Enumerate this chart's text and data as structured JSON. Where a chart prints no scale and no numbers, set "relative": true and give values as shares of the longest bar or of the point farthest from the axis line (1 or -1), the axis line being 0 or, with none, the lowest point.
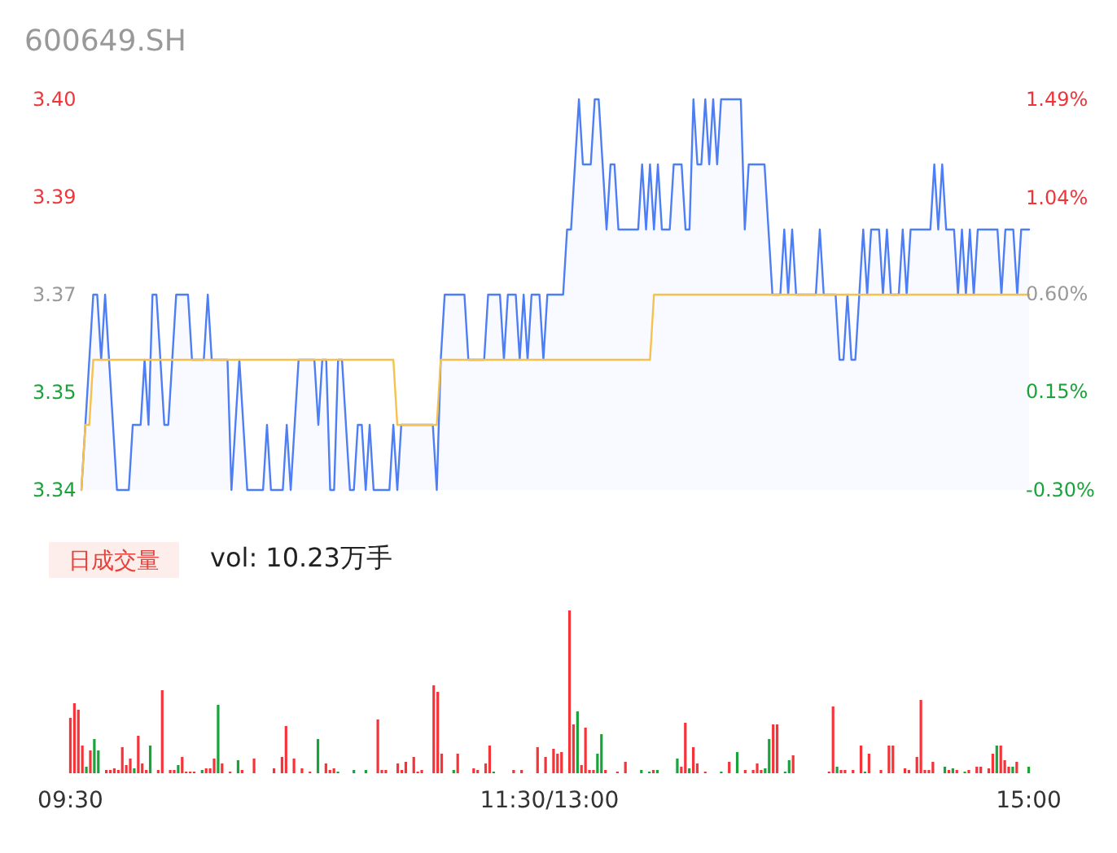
{
  "chart_data": [
    {
      "type": "line",
      "subtitle": "600649.SH",
      "ylim": [
        3.34,
        3.4
      ],
      "yticks": [
        3.34,
        {
          "value": 3.355,
          "label": "3.35"
        },
        3.37,
        {
          "value": 3.385,
          "label": "3.39"
        },
        {
          "value": 3.4,
          "label": "3.40"
        }
      ],
      "y2lim": [
        -0.3,
        1.49
      ],
      "y2ticks": [
        {
          "value": -0.3,
          "label": "-0.30%"
        },
        {
          "value": 0.15,
          "label": "0.15%"
        },
        {
          "value": 0.6,
          "label": "0.60%"
        },
        {
          "value": 1.04,
          "label": "1.04%"
        },
        {
          "value": 1.49,
          "label": "1.49%"
        }
      ],
      "tick_labels": "y",
      "categories": [
        null,
        null,
        null,
        null,
        null,
        null,
        null,
        null,
        null,
        null,
        null,
        null,
        null,
        null,
        null,
        null,
        null,
        null,
        null,
        null,
        null,
        null,
        null,
        null,
        null,
        null,
        null,
        null,
        null,
        null,
        null,
        null,
        null,
        null,
        null,
        null,
        null,
        null,
        null,
        null,
        null,
        null,
        null,
        null,
        null,
        null,
        null,
        null,
        null,
        null,
        null,
        null,
        null,
        null,
        null,
        null,
        null,
        null,
        null,
        null,
        null,
        null,
        null,
        null,
        null,
        null,
        null,
        null,
        null,
        null,
        null,
        null,
        null,
        null,
        null,
        null,
        null,
        null,
        null,
        null,
        null,
        null,
        null,
        null,
        null,
        null,
        null,
        null,
        null,
        null,
        null,
        null,
        null,
        null,
        null,
        null,
        null,
        null,
        null,
        null,
        null,
        null,
        null,
        null,
        null,
        null,
        null,
        null,
        null,
        null,
        null,
        null,
        null,
        null,
        null,
        null,
        null,
        null,
        null,
        null,
        null,
        null,
        null,
        null,
        null,
        null,
        null,
        null,
        null,
        null,
        null,
        null,
        null,
        null,
        null,
        null,
        null,
        null,
        null,
        null,
        null,
        null,
        null,
        null,
        null,
        null,
        null,
        null,
        null,
        null,
        null,
        null,
        null,
        null,
        null,
        null,
        null,
        null,
        null,
        null,
        null,
        null,
        null,
        null,
        null,
        null,
        null,
        null,
        null,
        null,
        null,
        null,
        null,
        null,
        null,
        null,
        null,
        null,
        null,
        null,
        null,
        null,
        null,
        null,
        null,
        null,
        null,
        null,
        null,
        null,
        null,
        null,
        null,
        null,
        null,
        null,
        null,
        null,
        null,
        null,
        null,
        null,
        null,
        null,
        null,
        null,
        null,
        null,
        null,
        null,
        null,
        null,
        null,
        null,
        null,
        null,
        null,
        null,
        null,
        null,
        null,
        null,
        null,
        null,
        null,
        null,
        null,
        null,
        null,
        null,
        null,
        null,
        null,
        null,
        null,
        null,
        null,
        null,
        null,
        null,
        null
      ],
      "series": [
        {
          "type": "area",
          "color": "#4e7ef5",
          "values": [
            3.34,
            3.35,
            3.36,
            3.37,
            3.37,
            3.36,
            3.37,
            3.36,
            3.35,
            3.34,
            3.34,
            3.34,
            3.34,
            3.35,
            3.35,
            3.35,
            3.36,
            3.35,
            3.37,
            3.37,
            3.36,
            3.35,
            3.35,
            3.36,
            3.37,
            3.37,
            3.37,
            3.37,
            3.36,
            3.36,
            3.36,
            3.36,
            3.37,
            3.36,
            3.36,
            3.36,
            3.36,
            3.36,
            3.34,
            3.35,
            3.36,
            3.35,
            3.34,
            3.34,
            3.34,
            3.34,
            3.34,
            3.35,
            3.34,
            3.34,
            3.34,
            3.34,
            3.35,
            3.34,
            3.35,
            3.36,
            3.36,
            3.36,
            3.36,
            3.36,
            3.35,
            3.36,
            3.36,
            3.34,
            3.34,
            3.36,
            3.36,
            3.35,
            3.34,
            3.34,
            3.35,
            3.35,
            3.34,
            3.35,
            3.34,
            3.34,
            3.34,
            3.34,
            3.34,
            3.35,
            3.34,
            3.35,
            3.35,
            3.35,
            3.35,
            3.35,
            3.35,
            3.35,
            3.35,
            3.35,
            3.34,
            3.36,
            3.37,
            3.37,
            3.37,
            3.37,
            3.37,
            3.37,
            3.36,
            3.36,
            3.36,
            3.36,
            3.36,
            3.37,
            3.37,
            3.37,
            3.37,
            3.36,
            3.37,
            3.37,
            3.37,
            3.36,
            3.37,
            3.36,
            3.37,
            3.37,
            3.37,
            3.36,
            3.37,
            3.37,
            3.37,
            3.37,
            3.37,
            3.38,
            3.38,
            3.39,
            3.4,
            3.39,
            3.39,
            3.39,
            3.4,
            3.4,
            3.39,
            3.38,
            3.39,
            3.39,
            3.38,
            3.38,
            3.38,
            3.38,
            3.38,
            3.38,
            3.39,
            3.38,
            3.39,
            3.38,
            3.39,
            3.38,
            3.38,
            3.38,
            3.39,
            3.39,
            3.39,
            3.38,
            3.38,
            3.4,
            3.39,
            3.39,
            3.4,
            3.39,
            3.4,
            3.39,
            3.4,
            3.4,
            3.4,
            3.4,
            3.4,
            3.4,
            3.38,
            3.39,
            3.39,
            3.39,
            3.39,
            3.39,
            3.38,
            3.37,
            3.37,
            3.37,
            3.38,
            3.37,
            3.38,
            3.37,
            3.37,
            3.37,
            3.37,
            3.37,
            3.37,
            3.38,
            3.37,
            3.37,
            3.37,
            3.37,
            3.36,
            3.36,
            3.37,
            3.36,
            3.36,
            3.37,
            3.38,
            3.37,
            3.38,
            3.38,
            3.38,
            3.37,
            3.38,
            3.37,
            3.37,
            3.37,
            3.38,
            3.37,
            3.38,
            3.38,
            3.38,
            3.38,
            3.38,
            3.38,
            3.39,
            3.38,
            3.39,
            3.38,
            3.38,
            3.38,
            3.37,
            3.38,
            3.37,
            3.38,
            3.37,
            3.38,
            3.38,
            3.38,
            3.38,
            3.38,
            3.38,
            3.37,
            3.38,
            3.38,
            3.38,
            3.37,
            3.38,
            3.38,
            3.38
          ]
        },
        {
          "type": "line",
          "color": "#f6c14e",
          "values": [
            3.34,
            3.35,
            3.35,
            3.36,
            3.36,
            3.36,
            3.36,
            3.36,
            3.36,
            3.36,
            3.36,
            3.36,
            3.36,
            3.36,
            3.36,
            3.36,
            3.36,
            3.36,
            3.36,
            3.36,
            3.36,
            3.36,
            3.36,
            3.36,
            3.36,
            3.36,
            3.36,
            3.36,
            3.36,
            3.36,
            3.36,
            3.36,
            3.36,
            3.36,
            3.36,
            3.36,
            3.36,
            3.36,
            3.36,
            3.36,
            3.36,
            3.36,
            3.36,
            3.36,
            3.36,
            3.36,
            3.36,
            3.36,
            3.36,
            3.36,
            3.36,
            3.36,
            3.36,
            3.36,
            3.36,
            3.36,
            3.36,
            3.36,
            3.36,
            3.36,
            3.36,
            3.36,
            3.36,
            3.36,
            3.36,
            3.36,
            3.36,
            3.36,
            3.36,
            3.36,
            3.36,
            3.36,
            3.36,
            3.36,
            3.36,
            3.36,
            3.36,
            3.36,
            3.36,
            3.36,
            3.35,
            3.35,
            3.35,
            3.35,
            3.35,
            3.35,
            3.35,
            3.35,
            3.35,
            3.35,
            3.35,
            3.36,
            3.36,
            3.36,
            3.36,
            3.36,
            3.36,
            3.36,
            3.36,
            3.36,
            3.36,
            3.36,
            3.36,
            3.36,
            3.36,
            3.36,
            3.36,
            3.36,
            3.36,
            3.36,
            3.36,
            3.36,
            3.36,
            3.36,
            3.36,
            3.36,
            3.36,
            3.36,
            3.36,
            3.36,
            3.36,
            3.36,
            3.36,
            3.36,
            3.36,
            3.36,
            3.36,
            3.36,
            3.36,
            3.36,
            3.36,
            3.36,
            3.36,
            3.36,
            3.36,
            3.36,
            3.36,
            3.36,
            3.36,
            3.36,
            3.36,
            3.36,
            3.36,
            3.36,
            3.36,
            3.37,
            3.37,
            3.37,
            3.37,
            3.37,
            3.37,
            3.37,
            3.37,
            3.37,
            3.37,
            3.37,
            3.37,
            3.37,
            3.37,
            3.37,
            3.37,
            3.37,
            3.37,
            3.37,
            3.37,
            3.37,
            3.37,
            3.37,
            3.37,
            3.37,
            3.37,
            3.37,
            3.37,
            3.37,
            3.37,
            3.37,
            3.37,
            3.37,
            3.37,
            3.37,
            3.37,
            3.37,
            3.37,
            3.37,
            3.37,
            3.37,
            3.37,
            3.37,
            3.37,
            3.37,
            3.37,
            3.37,
            3.37,
            3.37,
            3.37,
            3.37,
            3.37,
            3.37,
            3.37,
            3.37,
            3.37,
            3.37,
            3.37,
            3.37,
            3.37,
            3.37,
            3.37,
            3.37,
            3.37,
            3.37,
            3.37,
            3.37,
            3.37,
            3.37,
            3.37,
            3.37,
            3.37,
            3.37,
            3.37,
            3.37,
            3.37,
            3.37,
            3.37,
            3.37,
            3.37,
            3.37,
            3.37,
            3.37,
            3.37,
            3.37,
            3.37,
            3.37,
            3.37,
            3.37,
            3.37,
            3.37,
            3.37,
            3.37,
            3.37,
            3.37,
            3.37
          ]
        }
      ]
    },
    {
      "type": "bar",
      "relative": true,
      "tick_labels": "x",
      "annotations": [
        "日成交量",
        "vol: 10.23万手"
      ],
      "categories": [
        "09:30",
        null,
        null,
        null,
        null,
        null,
        null,
        null,
        null,
        null,
        null,
        null,
        null,
        null,
        null,
        null,
        null,
        null,
        null,
        null,
        null,
        null,
        null,
        null,
        null,
        null,
        null,
        null,
        null,
        null,
        null,
        null,
        null,
        null,
        null,
        null,
        null,
        null,
        null,
        null,
        null,
        null,
        null,
        null,
        null,
        null,
        null,
        null,
        null,
        null,
        null,
        null,
        null,
        null,
        null,
        null,
        null,
        null,
        null,
        null,
        null,
        null,
        null,
        null,
        null,
        null,
        null,
        null,
        null,
        null,
        null,
        null,
        null,
        null,
        null,
        null,
        null,
        null,
        null,
        null,
        null,
        null,
        null,
        null,
        null,
        null,
        null,
        null,
        null,
        null,
        null,
        null,
        null,
        null,
        null,
        null,
        null,
        null,
        null,
        null,
        null,
        null,
        null,
        null,
        null,
        null,
        null,
        null,
        null,
        null,
        null,
        null,
        null,
        null,
        null,
        null,
        null,
        null,
        null,
        null,
        "11:30/13:00",
        null,
        null,
        null,
        null,
        null,
        null,
        null,
        null,
        null,
        null,
        null,
        null,
        null,
        null,
        null,
        null,
        null,
        null,
        null,
        null,
        null,
        null,
        null,
        null,
        null,
        null,
        null,
        null,
        null,
        null,
        null,
        null,
        null,
        null,
        null,
        null,
        null,
        null,
        null,
        null,
        null,
        null,
        null,
        null,
        null,
        null,
        null,
        null,
        null,
        null,
        null,
        null,
        null,
        null,
        null,
        null,
        null,
        null,
        null,
        null,
        null,
        null,
        null,
        null,
        null,
        null,
        null,
        null,
        null,
        null,
        null,
        null,
        null,
        null,
        null,
        null,
        null,
        null,
        null,
        null,
        null,
        null,
        null,
        null,
        null,
        null,
        null,
        null,
        null,
        null,
        null,
        null,
        null,
        null,
        null,
        null,
        null,
        null,
        null,
        null,
        null,
        null,
        null,
        null,
        null,
        null,
        null,
        null,
        null,
        null,
        null,
        null,
        null,
        null,
        null,
        null,
        null,
        null,
        null,
        "15:00"
      ],
      "series": [
        {
          "color": "#f5343a",
          "values": [
            0.34,
            0.43,
            0.39,
            0.17,
            null,
            0.14,
            null,
            null,
            null,
            0.02,
            0.02,
            0.03,
            0.02,
            0.16,
            0.05,
            0.09,
            null,
            0.23,
            0.06,
            0.02,
            null,
            null,
            0.02,
            0.51,
            null,
            0.02,
            0.02,
            null,
            0.1,
            0.01,
            0.01,
            0.01,
            null,
            null,
            0.03,
            0.03,
            0.09,
            null,
            0.06,
            null,
            0.01,
            null,
            null,
            0.02,
            null,
            null,
            0.09,
            null,
            null,
            null,
            null,
            0.03,
            null,
            0.1,
            0.29,
            null,
            0.09,
            null,
            0.03,
            null,
            0.01,
            null,
            null,
            null,
            0.06,
            0.02,
            0.03,
            null,
            null,
            null,
            null,
            null,
            null,
            null,
            null,
            null,
            null,
            0.33,
            0.02,
            0.02,
            null,
            null,
            0.06,
            0.02,
            0.07,
            null,
            0.1,
            0.01,
            0.02,
            null,
            null,
            0.54,
            0.5,
            0.12,
            null,
            null,
            null,
            0.12,
            null,
            null,
            null,
            0.03,
            0.02,
            null,
            0.06,
            0.17,
            null,
            null,
            null,
            null,
            null,
            0.02,
            null,
            0.02,
            null,
            null,
            null,
            0.16,
            null,
            0.1,
            null,
            0.15,
            0.12,
            0.13,
            null,
            1.0,
            0.3,
            null,
            0.05,
            0.28,
            0.02,
            0.02,
            null,
            null,
            0.02,
            null,
            null,
            0.01,
            null,
            0.07,
            null,
            null,
            null,
            null,
            null,
            null,
            0.02,
            null,
            null,
            null,
            null,
            null,
            null,
            0.04,
            0.31,
            null,
            0.16,
            0.06,
            null,
            0.01,
            null,
            null,
            null,
            null,
            null,
            0.07,
            null,
            null,
            null,
            0.02,
            null,
            0.02,
            0.06,
            0.02,
            null,
            null,
            0.3,
            0.3,
            null,
            null,
            null,
            0.11,
            null,
            null,
            null,
            null,
            null,
            null,
            null,
            null,
            0.01,
            0.41,
            null,
            0.02,
            0.02,
            null,
            0.02,
            null,
            0.17,
            null,
            0.12,
            null,
            null,
            0.02,
            null,
            0.17,
            0.17,
            null,
            null,
            0.03,
            0.02,
            null,
            0.1,
            0.45,
            0.02,
            0.02,
            0.07,
            null,
            null,
            null,
            0.02,
            null,
            0.02,
            null,
            null,
            0.02,
            null,
            0.04,
            0.04,
            null,
            0.03,
            0.12,
            null,
            0.17,
            0.08,
            0.04,
            null,
            0.07,
            null,
            null,
            null
          ]
        },
        {
          "color": "#1aa33a",
          "values": [
            null,
            null,
            null,
            null,
            0.04,
            null,
            0.21,
            0.14,
            null,
            null,
            null,
            null,
            null,
            null,
            null,
            null,
            0.03,
            null,
            null,
            null,
            0.17,
            null,
            null,
            null,
            null,
            null,
            null,
            0.05,
            null,
            null,
            null,
            null,
            null,
            0.02,
            null,
            null,
            null,
            0.42,
            null,
            null,
            null,
            null,
            0.08,
            null,
            null,
            null,
            null,
            null,
            null,
            null,
            null,
            null,
            null,
            null,
            null,
            null,
            null,
            null,
            null,
            null,
            null,
            null,
            0.21,
            null,
            null,
            null,
            null,
            0.01,
            null,
            null,
            null,
            0.02,
            null,
            null,
            0.02,
            null,
            null,
            null,
            null,
            null,
            null,
            null,
            null,
            null,
            null,
            null,
            null,
            null,
            null,
            null,
            null,
            null,
            null,
            null,
            null,
            null,
            0.02,
            null,
            null,
            null,
            null,
            null,
            null,
            null,
            null,
            null,
            0.01,
            null,
            null,
            null,
            null,
            null,
            null,
            null,
            null,
            null,
            null,
            null,
            null,
            null,
            null,
            null,
            null,
            null,
            null,
            null,
            null,
            0.38,
            null,
            null,
            null,
            null,
            0.12,
            0.24,
            null,
            null,
            null,
            null,
            null,
            null,
            null,
            null,
            null,
            0.02,
            null,
            0.01,
            null,
            0.02,
            null,
            null,
            null,
            null,
            0.09,
            null,
            null,
            0.03,
            null,
            null,
            null,
            null,
            null,
            null,
            null,
            0.01,
            null,
            null,
            null,
            0.13,
            null,
            null,
            null,
            null,
            null,
            null,
            0.03,
            0.21,
            null,
            null,
            null,
            0.01,
            0.08,
            null,
            null,
            null,
            null,
            null,
            null,
            null,
            null,
            null,
            null,
            null,
            0.04,
            null,
            null,
            null,
            null,
            null,
            null,
            0.01,
            null,
            null,
            null,
            null,
            null,
            null,
            null,
            null,
            null,
            null,
            null,
            null,
            null,
            null,
            null,
            null,
            null,
            null,
            null,
            0.04,
            null,
            0.03,
            null,
            null,
            0.01,
            null,
            null,
            null,
            null,
            null,
            null,
            null,
            0.17,
            null,
            null,
            null,
            0.04,
            null,
            null,
            null,
            0.04
          ]
        }
      ]
    }
  ]
}
